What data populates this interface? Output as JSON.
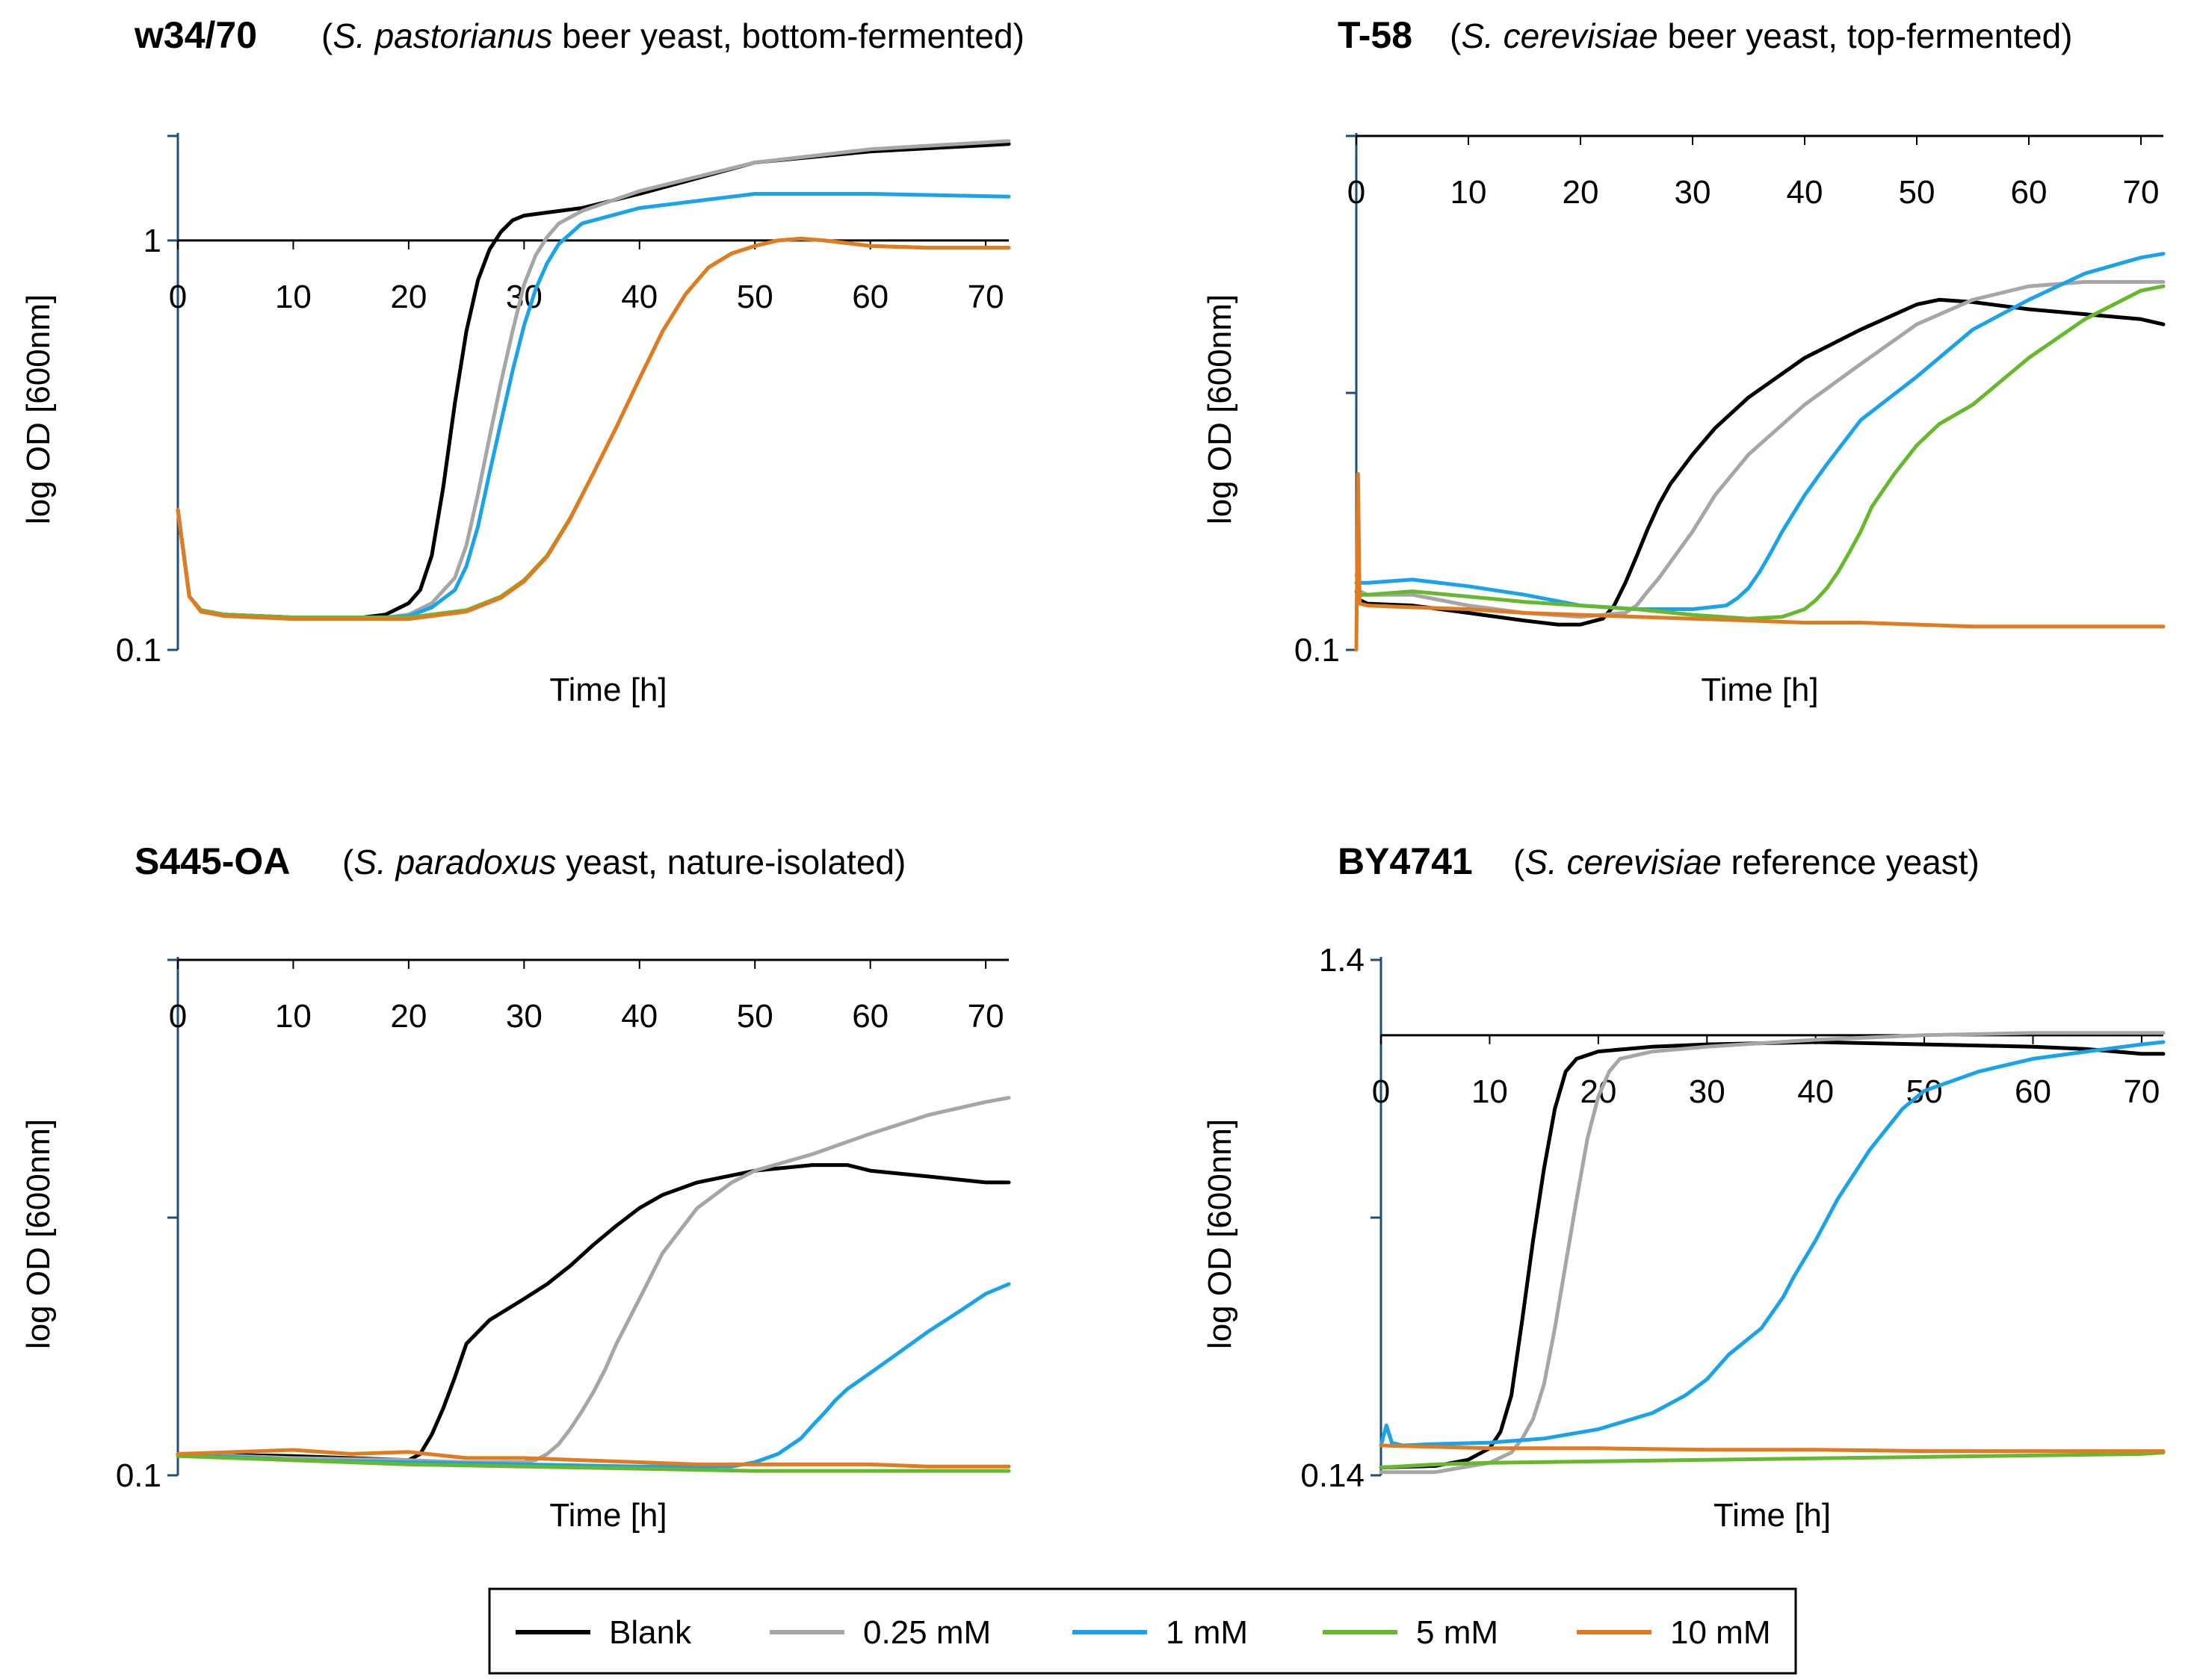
{
  "colors": {
    "Blank": "#000000",
    "0.25 mM": "#a6a6a6",
    "1 mM": "#1aa3e8",
    "5 mM": "#66b92e",
    "10 mM": "#e07b22",
    "axis": "#1f4e79"
  },
  "legend": [
    "Blank",
    "0.25 mM",
    "1 mM",
    "5 mM",
    "10 mM"
  ],
  "chart_data": [
    {
      "type": "line",
      "title": "w34/70",
      "subtitle_parts": [
        {
          "text": "(",
          "italic": false
        },
        {
          "text": "S. pastorianus",
          "italic": true
        },
        {
          "text": " beer yeast, bottom-fermented)",
          "italic": false
        }
      ],
      "xlabel": "Time [h]",
      "ylabel": "log OD [600nm]",
      "yscale": "log",
      "xlim": [
        0,
        72
      ],
      "ylim": [
        0.1,
        1.8
      ],
      "xticks": [
        "0",
        "10",
        "20",
        "30",
        "40",
        "50",
        "60",
        "70"
      ],
      "yticks": [
        {
          "value": 0.1,
          "label": "0.1"
        },
        {
          "value": 1,
          "label": "1"
        }
      ],
      "x_axis_at": 1,
      "series": [
        {
          "name": "Blank",
          "x": [
            0,
            1,
            2,
            4,
            10,
            16,
            18,
            20,
            21,
            22,
            23,
            24,
            25,
            26,
            27,
            28,
            29,
            30,
            32,
            35,
            40,
            50,
            60,
            72
          ],
          "y": [
            0.22,
            0.135,
            0.125,
            0.122,
            0.12,
            0.12,
            0.122,
            0.13,
            0.14,
            0.17,
            0.25,
            0.4,
            0.6,
            0.8,
            0.95,
            1.05,
            1.12,
            1.15,
            1.17,
            1.2,
            1.3,
            1.55,
            1.65,
            1.72
          ]
        },
        {
          "name": "0.25 mM",
          "x": [
            0,
            1,
            2,
            4,
            10,
            18,
            20,
            22,
            24,
            25,
            26,
            27,
            28,
            29,
            30,
            31,
            32,
            33,
            35,
            40,
            50,
            60,
            72
          ],
          "y": [
            0.22,
            0.135,
            0.125,
            0.122,
            0.12,
            0.12,
            0.122,
            0.13,
            0.15,
            0.18,
            0.24,
            0.33,
            0.45,
            0.6,
            0.78,
            0.92,
            1.02,
            1.1,
            1.18,
            1.32,
            1.55,
            1.67,
            1.75
          ]
        },
        {
          "name": "1 mM",
          "x": [
            0,
            1,
            2,
            4,
            10,
            18,
            20,
            22,
            24,
            25,
            26,
            27,
            28,
            29,
            30,
            31,
            32,
            33,
            35,
            40,
            50,
            60,
            72
          ],
          "y": [
            0.22,
            0.135,
            0.125,
            0.122,
            0.12,
            0.12,
            0.121,
            0.127,
            0.14,
            0.16,
            0.2,
            0.27,
            0.36,
            0.48,
            0.62,
            0.76,
            0.88,
            0.98,
            1.1,
            1.2,
            1.3,
            1.3,
            1.28
          ]
        },
        {
          "name": "5 mM",
          "x": [
            0,
            1,
            2,
            4,
            10,
            20,
            25,
            28,
            30,
            32,
            34,
            36,
            38,
            40,
            42,
            44,
            46,
            48,
            50,
            52,
            54,
            56,
            60,
            65,
            72
          ],
          "y": [
            0.22,
            0.135,
            0.125,
            0.122,
            0.12,
            0.12,
            0.125,
            0.135,
            0.148,
            0.17,
            0.21,
            0.27,
            0.35,
            0.46,
            0.6,
            0.74,
            0.86,
            0.93,
            0.97,
            1.0,
            1.01,
            1.0,
            0.97,
            0.96,
            0.96
          ]
        },
        {
          "name": "10 mM",
          "x": [
            0,
            1,
            2,
            4,
            10,
            20,
            25,
            28,
            30,
            32,
            34,
            36,
            38,
            40,
            42,
            44,
            46,
            48,
            50,
            52,
            54,
            56,
            60,
            65,
            72
          ],
          "y": [
            0.22,
            0.135,
            0.124,
            0.121,
            0.119,
            0.119,
            0.124,
            0.134,
            0.147,
            0.169,
            0.209,
            0.27,
            0.35,
            0.46,
            0.6,
            0.74,
            0.86,
            0.93,
            0.97,
            1.0,
            1.01,
            1.0,
            0.97,
            0.96,
            0.96
          ]
        }
      ]
    },
    {
      "type": "line",
      "title": "T-58",
      "subtitle_parts": [
        {
          "text": "(",
          "italic": false
        },
        {
          "text": "S. cerevisiae",
          "italic": true
        },
        {
          "text": " beer yeast, top-fermented)",
          "italic": false
        }
      ],
      "xlabel": "Time [h]",
      "ylabel": "log OD [600nm]",
      "yscale": "log",
      "xlim": [
        0,
        72
      ],
      "ylim": [
        0.1,
        1.0
      ],
      "xticks": [
        "0",
        "10",
        "20",
        "30",
        "40",
        "50",
        "60",
        "70"
      ],
      "yticks": [
        {
          "value": 0.1,
          "label": "0.1"
        }
      ],
      "x_axis_at": 1.0,
      "series": [
        {
          "name": "Blank",
          "x": [
            0,
            0.3,
            1,
            5,
            10,
            15,
            18,
            20,
            22,
            23,
            24,
            25,
            26,
            27,
            28,
            30,
            32,
            35,
            40,
            45,
            50,
            52,
            55,
            60,
            65,
            70,
            72
          ],
          "y": [
            0.13,
            0.125,
            0.123,
            0.122,
            0.118,
            0.114,
            0.112,
            0.112,
            0.115,
            0.122,
            0.135,
            0.152,
            0.172,
            0.192,
            0.21,
            0.24,
            0.27,
            0.31,
            0.37,
            0.42,
            0.47,
            0.48,
            0.475,
            0.46,
            0.45,
            0.44,
            0.43
          ]
        },
        {
          "name": "0.25 mM",
          "x": [
            0,
            0.3,
            1,
            5,
            10,
            15,
            20,
            24,
            25,
            26,
            27,
            28,
            30,
            32,
            35,
            40,
            45,
            50,
            55,
            60,
            65,
            70,
            72
          ],
          "y": [
            0.14,
            0.13,
            0.128,
            0.128,
            0.122,
            0.118,
            0.116,
            0.118,
            0.122,
            0.13,
            0.138,
            0.148,
            0.17,
            0.2,
            0.24,
            0.3,
            0.36,
            0.43,
            0.48,
            0.51,
            0.52,
            0.52,
            0.52
          ]
        },
        {
          "name": "1 mM",
          "x": [
            0,
            0.3,
            1,
            5,
            10,
            15,
            20,
            25,
            30,
            33,
            34,
            35,
            36,
            37,
            38,
            40,
            42,
            45,
            50,
            55,
            60,
            65,
            70,
            72
          ],
          "y": [
            0.135,
            0.135,
            0.135,
            0.137,
            0.133,
            0.128,
            0.122,
            0.12,
            0.12,
            0.122,
            0.126,
            0.132,
            0.142,
            0.155,
            0.17,
            0.2,
            0.23,
            0.28,
            0.34,
            0.42,
            0.48,
            0.54,
            0.58,
            0.59
          ]
        },
        {
          "name": "5 mM",
          "x": [
            0,
            0.3,
            1,
            5,
            10,
            15,
            20,
            25,
            30,
            35,
            38,
            40,
            41,
            42,
            43,
            44,
            45,
            46,
            48,
            50,
            52,
            55,
            60,
            65,
            70,
            72
          ],
          "y": [
            0.13,
            0.128,
            0.128,
            0.13,
            0.127,
            0.124,
            0.122,
            0.12,
            0.117,
            0.115,
            0.116,
            0.12,
            0.125,
            0.132,
            0.142,
            0.155,
            0.17,
            0.19,
            0.22,
            0.25,
            0.275,
            0.3,
            0.37,
            0.44,
            0.5,
            0.51
          ]
        },
        {
          "name": "10 mM",
          "x": [
            0,
            0.15,
            0.3,
            1,
            5,
            10,
            15,
            20,
            25,
            30,
            35,
            40,
            45,
            50,
            55,
            60,
            65,
            70,
            72
          ],
          "y": [
            0.1,
            0.22,
            0.123,
            0.122,
            0.121,
            0.12,
            0.118,
            0.117,
            0.116,
            0.115,
            0.114,
            0.113,
            0.113,
            0.112,
            0.111,
            0.111,
            0.111,
            0.111,
            0.111
          ]
        }
      ]
    },
    {
      "type": "line",
      "title": "S445-OA",
      "subtitle_parts": [
        {
          "text": "(",
          "italic": false
        },
        {
          "text": "S. paradoxus",
          "italic": true
        },
        {
          "text": " yeast, nature-isolated)",
          "italic": false
        }
      ],
      "xlabel": "Time [h]",
      "ylabel": "log OD [600nm]",
      "yscale": "log",
      "xlim": [
        0,
        72
      ],
      "ylim": [
        0.1,
        1.0
      ],
      "xticks": [
        "0",
        "10",
        "20",
        "30",
        "40",
        "50",
        "60",
        "70"
      ],
      "yticks": [
        {
          "value": 0.1,
          "label": "0.1"
        }
      ],
      "x_axis_at": 1.0,
      "series": [
        {
          "name": "Blank",
          "x": [
            0,
            10,
            20,
            21,
            22,
            23,
            24,
            25,
            27,
            30,
            32,
            34,
            36,
            38,
            40,
            42,
            45,
            50,
            55,
            58,
            60,
            65,
            70,
            72
          ],
          "y": [
            0.11,
            0.109,
            0.107,
            0.11,
            0.12,
            0.135,
            0.155,
            0.18,
            0.2,
            0.22,
            0.235,
            0.255,
            0.28,
            0.305,
            0.33,
            0.35,
            0.37,
            0.39,
            0.4,
            0.4,
            0.39,
            0.38,
            0.37,
            0.37
          ]
        },
        {
          "name": "0.25 mM",
          "x": [
            0,
            10,
            20,
            25,
            30,
            31,
            32,
            33,
            34,
            35,
            36,
            37,
            38,
            40,
            42,
            45,
            48,
            50,
            55,
            60,
            65,
            70,
            72
          ],
          "y": [
            0.11,
            0.108,
            0.107,
            0.106,
            0.106,
            0.107,
            0.11,
            0.115,
            0.123,
            0.133,
            0.145,
            0.16,
            0.18,
            0.22,
            0.27,
            0.33,
            0.37,
            0.39,
            0.42,
            0.46,
            0.5,
            0.53,
            0.54
          ]
        },
        {
          "name": "1 mM",
          "x": [
            0,
            10,
            20,
            30,
            40,
            48,
            50,
            52,
            54,
            55,
            56,
            57,
            58,
            60,
            62,
            65,
            68,
            70,
            72
          ],
          "y": [
            0.11,
            0.107,
            0.106,
            0.105,
            0.104,
            0.104,
            0.106,
            0.11,
            0.118,
            0.125,
            0.132,
            0.14,
            0.147,
            0.158,
            0.17,
            0.19,
            0.21,
            0.225,
            0.235
          ]
        },
        {
          "name": "5 mM",
          "x": [
            0,
            10,
            20,
            30,
            40,
            50,
            60,
            70,
            72
          ],
          "y": [
            0.109,
            0.107,
            0.105,
            0.104,
            0.103,
            0.102,
            0.102,
            0.102,
            0.102
          ]
        },
        {
          "name": "10 mM",
          "x": [
            0,
            5,
            10,
            15,
            20,
            25,
            30,
            35,
            40,
            45,
            50,
            55,
            60,
            65,
            70,
            72
          ],
          "y": [
            0.11,
            0.111,
            0.112,
            0.11,
            0.111,
            0.108,
            0.108,
            0.107,
            0.106,
            0.105,
            0.105,
            0.105,
            0.105,
            0.104,
            0.104,
            0.104
          ]
        }
      ]
    },
    {
      "type": "line",
      "title": "BY4741",
      "subtitle_parts": [
        {
          "text": "(",
          "italic": false
        },
        {
          "text": "S. cerevisiae",
          "italic": true
        },
        {
          "text": " reference yeast)",
          "italic": false
        }
      ],
      "xlabel": "Time [h]",
      "ylabel": "log OD [600nm]",
      "yscale": "log",
      "xlim": [
        0,
        72
      ],
      "ylim": [
        0.14,
        1.4
      ],
      "xticks": [
        "0",
        "10",
        "20",
        "30",
        "40",
        "50",
        "60",
        "70"
      ],
      "yticks": [
        {
          "value": 0.14,
          "label": "0.14"
        },
        {
          "value": 1.4,
          "label": "1.4"
        }
      ],
      "x_axis_at": 1.0,
      "series": [
        {
          "name": "Blank",
          "x": [
            0,
            5,
            8,
            10,
            11,
            12,
            13,
            14,
            15,
            16,
            17,
            18,
            20,
            25,
            30,
            40,
            50,
            60,
            65,
            70,
            72
          ],
          "y": [
            0.145,
            0.146,
            0.15,
            0.158,
            0.17,
            0.2,
            0.28,
            0.4,
            0.55,
            0.72,
            0.85,
            0.9,
            0.93,
            0.95,
            0.96,
            0.97,
            0.96,
            0.95,
            0.94,
            0.92,
            0.92
          ]
        },
        {
          "name": "0.25 mM",
          "x": [
            0,
            5,
            10,
            12,
            13,
            14,
            15,
            16,
            17,
            18,
            19,
            20,
            21,
            22,
            25,
            30,
            40,
            50,
            60,
            70,
            72
          ],
          "y": [
            0.142,
            0.142,
            0.148,
            0.155,
            0.165,
            0.18,
            0.21,
            0.27,
            0.36,
            0.48,
            0.63,
            0.76,
            0.85,
            0.9,
            0.93,
            0.95,
            0.98,
            1.0,
            1.01,
            1.01,
            1.01
          ]
        },
        {
          "name": "1 mM",
          "x": [
            0,
            0.5,
            1,
            2,
            5,
            10,
            15,
            20,
            25,
            28,
            30,
            32,
            35,
            37,
            38,
            40,
            42,
            45,
            48,
            50,
            55,
            60,
            65,
            70,
            72
          ],
          "y": [
            0.16,
            0.175,
            0.162,
            0.16,
            0.161,
            0.162,
            0.165,
            0.172,
            0.185,
            0.2,
            0.215,
            0.24,
            0.27,
            0.31,
            0.34,
            0.4,
            0.48,
            0.6,
            0.72,
            0.78,
            0.85,
            0.9,
            0.93,
            0.96,
            0.97
          ]
        },
        {
          "name": "5 mM",
          "x": [
            0,
            5,
            10,
            20,
            30,
            40,
            50,
            60,
            70,
            72
          ],
          "y": [
            0.145,
            0.147,
            0.148,
            0.149,
            0.15,
            0.151,
            0.152,
            0.153,
            0.154,
            0.155
          ]
        },
        {
          "name": "10 mM",
          "x": [
            0,
            5,
            10,
            20,
            30,
            40,
            50,
            60,
            70,
            72
          ],
          "y": [
            0.16,
            0.159,
            0.158,
            0.158,
            0.157,
            0.157,
            0.156,
            0.156,
            0.156,
            0.156
          ]
        }
      ]
    }
  ]
}
